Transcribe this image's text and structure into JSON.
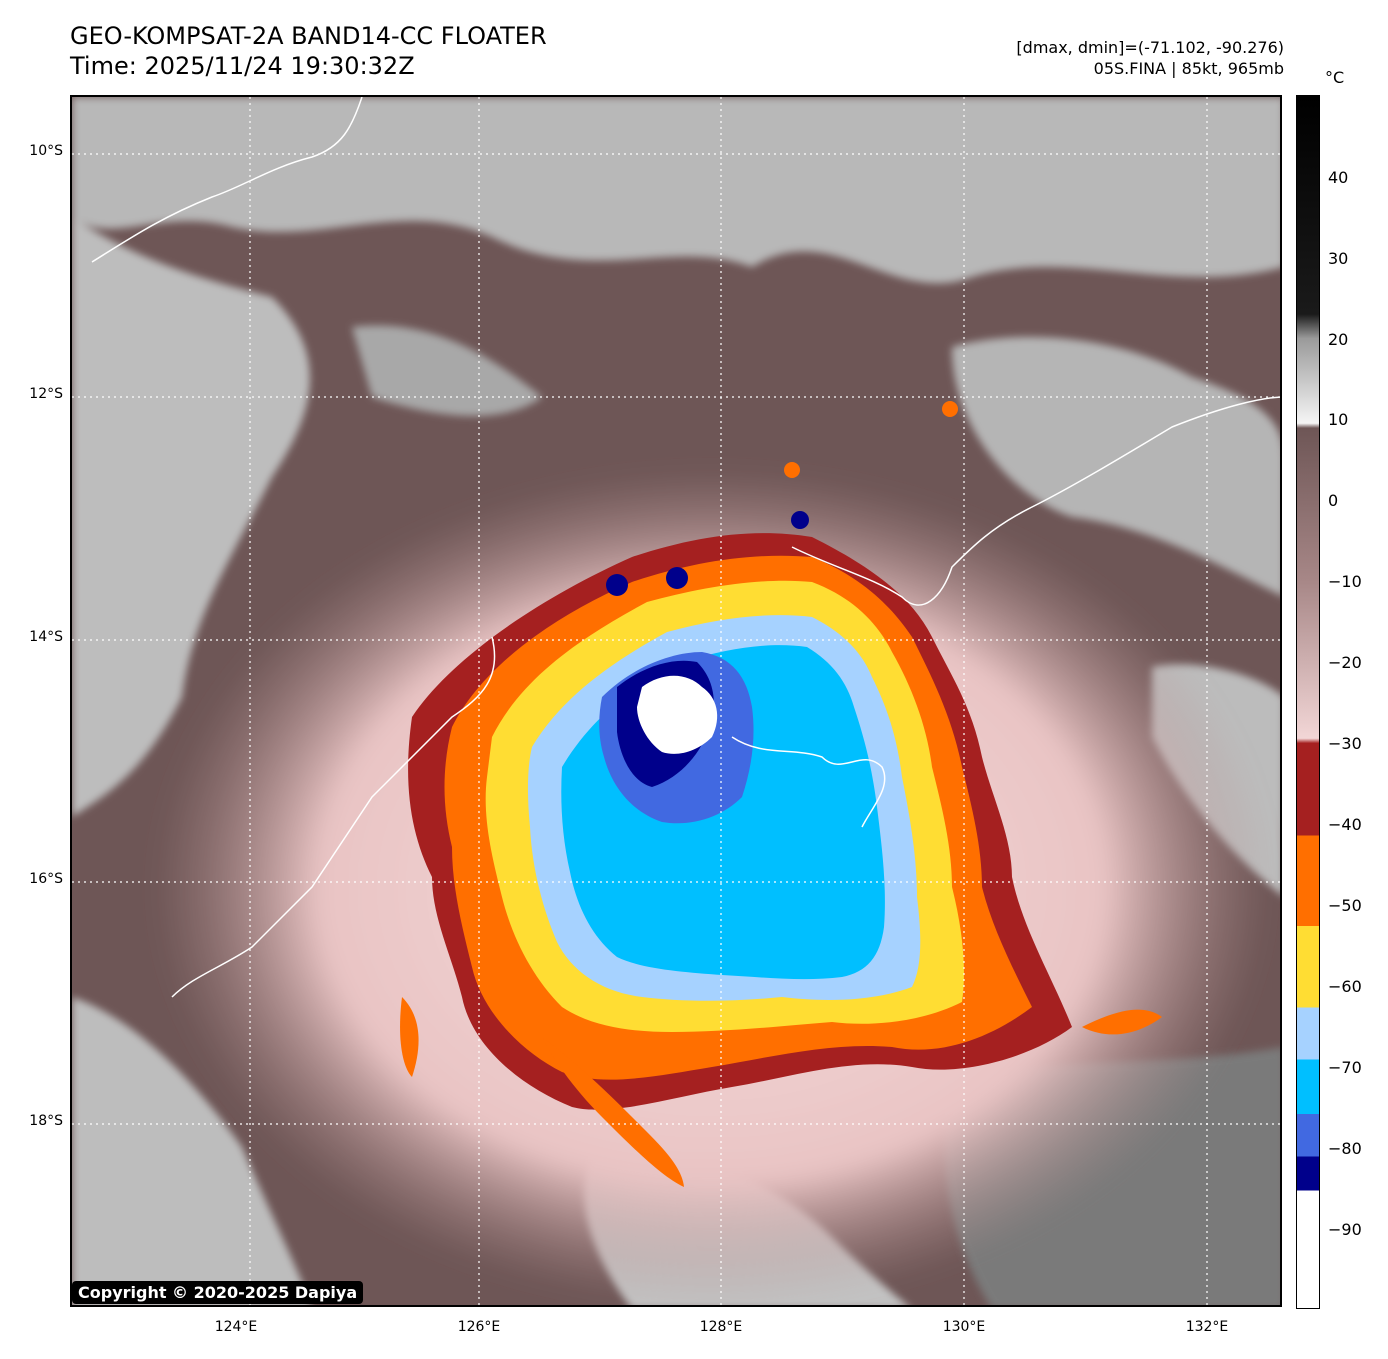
{
  "header": {
    "title": "GEO-KOMPSAT-2A BAND14-CC FLOATER",
    "time": "Time: 2025/11/24 19:30:32Z",
    "range": "[dmax, dmin]=(-71.102, -90.276)",
    "storm": "05S.FINA | 85kt, 965mb"
  },
  "map": {
    "lat_labels": [
      "10°S",
      "12°S",
      "14°S",
      "16°S",
      "18°S"
    ],
    "lon_labels": [
      "124°E",
      "126°E",
      "128°E",
      "130°E",
      "132°E"
    ],
    "grid": "dotted white"
  },
  "colorbar": {
    "unit": "°C",
    "ticks": [
      "40",
      "30",
      "20",
      "10",
      "0",
      "−10",
      "−20",
      "−30",
      "−40",
      "−50",
      "−60",
      "−70",
      "−80",
      "−90"
    ],
    "colors": {
      "cold_top": "#ffffff",
      "minus85": "#00008b",
      "minus80": "#4169e1",
      "minus75": "#00bfff",
      "minus65": "#a6d2ff",
      "minus55": "#ffdd33",
      "minus45": "#ff6f00",
      "minus35": "#a52020",
      "warm_brown": "#6e5656",
      "pink": "#f2d6d6",
      "warm_black": "#000000"
    }
  },
  "copyright": "Copyright © 2020-2025 Dapiya"
}
